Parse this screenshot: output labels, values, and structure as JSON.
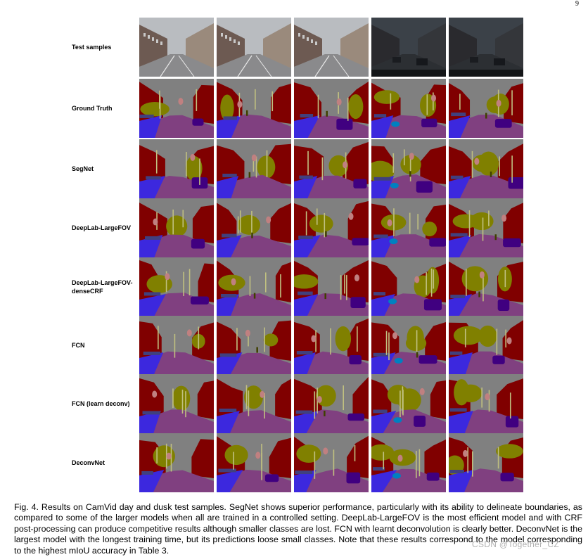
{
  "page": {
    "number": "9"
  },
  "figure": {
    "rows": [
      {
        "label": "Test samples",
        "kind": "photo"
      },
      {
        "label": "Ground Truth",
        "kind": "seg"
      },
      {
        "label": "SegNet",
        "kind": "seg"
      },
      {
        "label": "DeepLab-LargeFOV",
        "kind": "seg"
      },
      {
        "label": "DeepLab-LargeFOV-\ndenseCRF",
        "kind": "seg"
      },
      {
        "label": "FCN",
        "kind": "seg"
      },
      {
        "label": "FCN (learn deconv)",
        "kind": "seg"
      },
      {
        "label": "DeconvNet",
        "kind": "seg"
      }
    ],
    "columns": 5,
    "class_colors": {
      "sky": "#808080",
      "building": "#800000",
      "tree": "#808000",
      "road": "#804080",
      "pavement": "#3c28de",
      "car": "#400080",
      "pole": "#c0c080",
      "sign_symbol": "#c08080",
      "fence": "#40407f",
      "pedestrian": "#404000",
      "bicyclist": "#0080c0"
    },
    "caption": "Fig. 4. Results on CamVid day and dusk test samples. SegNet shows superior performance, particularly with its ability to delineate boundaries, as compared to some of the larger models when all are trained in a controlled setting. DeepLab-LargeFOV is the most efficient model and with CRF post-processing can produce competitive results although smaller classes are lost. FCN with learnt deconvolution is clearly better. DeconvNet is the largest model with the longest training time, but its predictions loose small classes. Note that these results correspond to the model corresponding to the highest mIoU accuracy in Table 3."
  },
  "watermark": {
    "text": "CSDN @Together_CZ"
  }
}
